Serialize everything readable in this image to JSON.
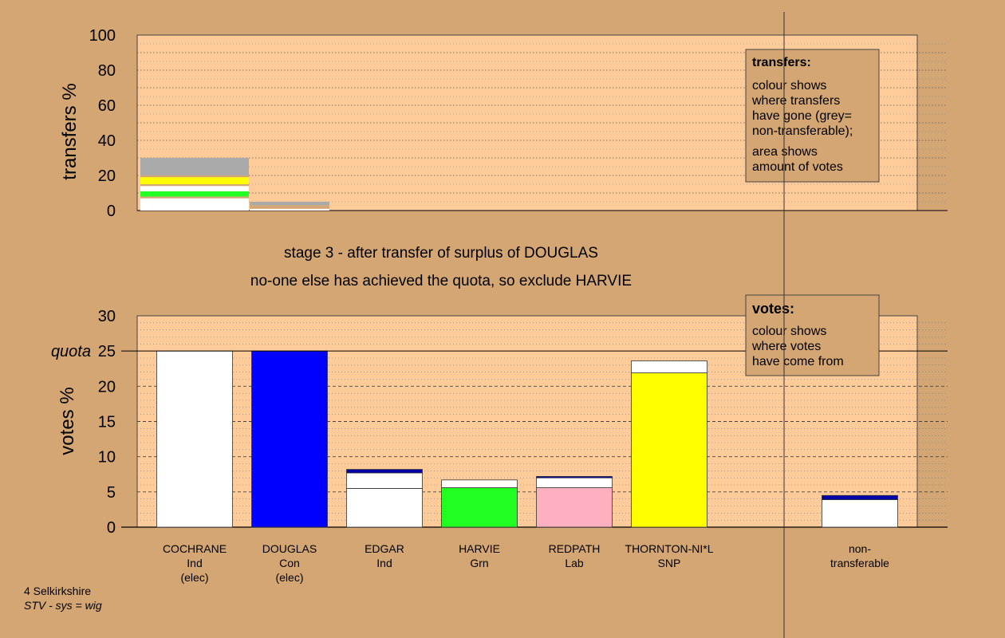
{
  "chart_data": [
    {
      "type": "bar",
      "name": "transfers-chart",
      "ylabel": "transfers %",
      "ylim": [
        0,
        100
      ],
      "yticks": [
        0,
        20,
        40,
        60,
        80,
        100
      ],
      "grid": true,
      "bars": [
        {
          "segments": [
            {
              "from": 0,
              "to": 7,
              "color": "#ffffff"
            },
            {
              "from": 7,
              "to": 8,
              "color": "#d4a674"
            },
            {
              "from": 8,
              "to": 11,
              "color": "#22ff22"
            },
            {
              "from": 11,
              "to": 14,
              "color": "#ffffff"
            },
            {
              "from": 14,
              "to": 15,
              "color": "#d4a674"
            },
            {
              "from": 15,
              "to": 19,
              "color": "#ffff00"
            },
            {
              "from": 19,
              "to": 20,
              "color": "#d4a674"
            },
            {
              "from": 20,
              "to": 30,
              "color": "#aaaaaa"
            }
          ]
        },
        {
          "segments": [
            {
              "from": 0,
              "to": 1,
              "color": "#ffffff"
            },
            {
              "from": 1,
              "to": 3,
              "color": "#d4a674"
            },
            {
              "from": 3,
              "to": 5,
              "color": "#aaaaaa"
            }
          ]
        }
      ],
      "legend": {
        "title": "transfers:",
        "lines": [
          "colour shows",
          "where transfers",
          "have gone (grey=",
          "non-transferable);"
        ],
        "lines2": [
          "area shows",
          "amount of votes"
        ]
      }
    },
    {
      "type": "bar",
      "name": "votes-chart",
      "ylabel": "votes %",
      "ylim": [
        0,
        30
      ],
      "yticks": [
        0,
        5,
        10,
        15,
        20,
        25,
        30
      ],
      "quota": {
        "label": "quota",
        "value": 25
      },
      "categories": [
        {
          "lines": [
            "COCHRANE",
            "Ind",
            "(elec)"
          ],
          "segments": [
            {
              "from": 0,
              "to": 25,
              "color": "#ffffff"
            }
          ]
        },
        {
          "lines": [
            "DOUGLAS",
            "Con",
            "(elec)"
          ],
          "segments": [
            {
              "from": 0,
              "to": 25,
              "color": "#0000ff"
            }
          ]
        },
        {
          "lines": [
            "EDGAR",
            "Ind"
          ],
          "segments": [
            {
              "from": 0,
              "to": 5.5,
              "color": "#ffffff"
            },
            {
              "from": 5.5,
              "to": 7.7,
              "color": "#ffffff"
            },
            {
              "from": 7.7,
              "to": 8.2,
              "color": "#0000aa"
            }
          ]
        },
        {
          "lines": [
            "HARVIE",
            "Grn"
          ],
          "segments": [
            {
              "from": 0,
              "to": 5.6,
              "color": "#22ff22"
            },
            {
              "from": 5.6,
              "to": 6.7,
              "color": "#ffffff"
            }
          ]
        },
        {
          "lines": [
            "REDPATH",
            "Lab"
          ],
          "segments": [
            {
              "from": 0,
              "to": 5.6,
              "color": "#ffb0c0"
            },
            {
              "from": 5.6,
              "to": 7.0,
              "color": "#ffffff"
            },
            {
              "from": 7.0,
              "to": 7.2,
              "color": "#0000aa"
            }
          ]
        },
        {
          "lines": [
            "THORNTON-NI*L",
            "SNP"
          ],
          "segments": [
            {
              "from": 0,
              "to": 21.9,
              "color": "#ffff00"
            },
            {
              "from": 21.9,
              "to": 23.6,
              "color": "#ffffff"
            }
          ]
        },
        {
          "lines": [
            "non-",
            "transferable"
          ],
          "segments": [
            {
              "from": 0,
              "to": 3.9,
              "color": "#ffffff"
            },
            {
              "from": 3.9,
              "to": 4.5,
              "color": "#0000aa"
            }
          ]
        }
      ],
      "legend": {
        "title": "votes:",
        "lines": [
          "colour shows",
          "where votes",
          "have come from"
        ]
      }
    }
  ],
  "stage_lines": [
    "stage 3 - after transfer of surplus of DOUGLAS",
    "no-one else has achieved the quota, so exclude HARVIE"
  ],
  "footer": {
    "line1": "4 Selkirkshire",
    "line2": "STV - sys = wig"
  }
}
